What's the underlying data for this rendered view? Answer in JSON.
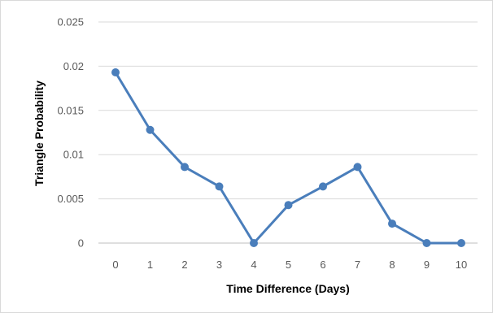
{
  "chart_data": {
    "type": "line",
    "title": "",
    "xlabel": "Time Difference (Days)",
    "ylabel": "Triangle Probability",
    "categories": [
      "0",
      "1",
      "2",
      "3",
      "4",
      "5",
      "6",
      "7",
      "8",
      "9",
      "10"
    ],
    "x": [
      0,
      1,
      2,
      3,
      4,
      5,
      6,
      7,
      8,
      9,
      10
    ],
    "series": [
      {
        "values": [
          0.0193,
          0.0128,
          0.0086,
          0.0064,
          0.0,
          0.0043,
          0.0064,
          0.0086,
          0.0022,
          0.0,
          0.0
        ]
      }
    ],
    "ylim": [
      0,
      0.025
    ],
    "yticks": [
      "0",
      "0.005",
      "0.01",
      "0.015",
      "0.02",
      "0.025"
    ],
    "grid": true,
    "legend": "none",
    "line_color": "#4a7ebb",
    "grid_color": "#d9d9d9"
  }
}
